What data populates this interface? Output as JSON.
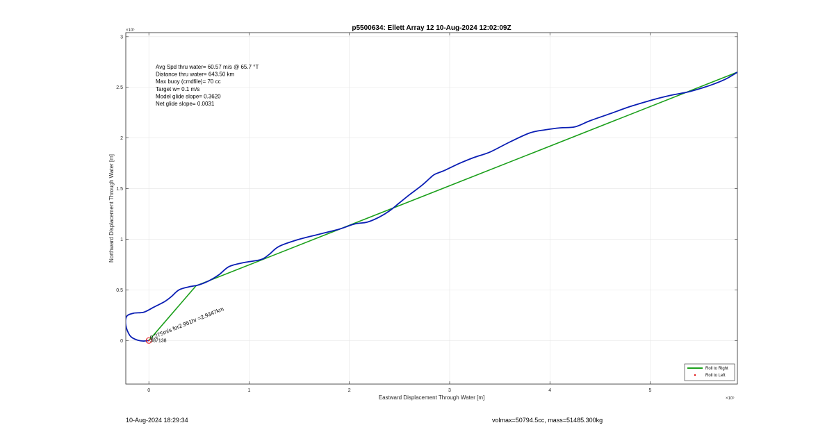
{
  "chart_data": {
    "type": "line",
    "title": "p5500634: Ellett Array 12 10-Aug-2024 12:02:09Z",
    "xlabel": "Eastward Displacement Through Water [m]",
    "ylabel": "Northward Displacement Through Water [m]",
    "x_exponent_label": "×10⁵",
    "y_exponent_label": "×10⁵",
    "xlim": [
      -0.23,
      5.87
    ],
    "ylim": [
      -0.43,
      3.04
    ],
    "x_ticks": [
      0,
      1,
      2,
      3,
      4,
      5
    ],
    "x_tick_labels": [
      "0",
      "1",
      "2",
      "3",
      "4",
      "5"
    ],
    "y_ticks": [
      0,
      0.5,
      1,
      1.5,
      2,
      2.5,
      3
    ],
    "y_tick_labels": [
      "0",
      "0.5",
      "1",
      "1.5",
      "2",
      "2.5",
      "3"
    ],
    "grid": true,
    "legend_position": "bottom-right",
    "series": [
      {
        "color": "#0a1eb4",
        "x": [
          0,
          -0.06,
          -0.13,
          -0.19,
          -0.23,
          -0.22,
          -0.15,
          -0.05,
          0.05,
          0.15,
          0.22,
          0.3,
          0.4,
          0.5,
          0.6,
          0.7,
          0.8,
          0.95,
          1.12,
          1.2,
          1.3,
          1.5,
          1.7,
          1.9,
          2.05,
          2.18,
          2.3,
          2.4,
          2.5,
          2.6,
          2.72,
          2.8,
          2.85,
          2.95,
          3.1,
          3.25,
          3.4,
          3.6,
          3.8,
          3.95,
          4.1,
          4.25,
          4.4,
          4.6,
          4.8,
          5.0,
          5.2,
          5.4,
          5.6,
          5.75,
          5.87
        ],
        "y": [
          0,
          -0.005,
          0.01,
          0.05,
          0.15,
          0.24,
          0.27,
          0.28,
          0.33,
          0.38,
          0.43,
          0.5,
          0.53,
          0.55,
          0.59,
          0.65,
          0.73,
          0.77,
          0.8,
          0.85,
          0.93,
          1.0,
          1.05,
          1.1,
          1.15,
          1.17,
          1.22,
          1.28,
          1.36,
          1.44,
          1.53,
          1.6,
          1.64,
          1.68,
          1.75,
          1.81,
          1.86,
          1.96,
          2.05,
          2.08,
          2.1,
          2.11,
          2.17,
          2.24,
          2.31,
          2.37,
          2.42,
          2.46,
          2.52,
          2.58,
          2.65
        ]
      },
      {
        "name": "Roll to Right",
        "color": "#1ca01c",
        "x": [
          0,
          0.47,
          5.87
        ],
        "y": [
          0,
          0.54,
          2.65
        ]
      },
      {
        "name": "Roll to Left",
        "color": "#e01010",
        "marker": "dot",
        "x": [],
        "y": []
      }
    ],
    "start_marker": {
      "x": 0,
      "y": 0,
      "color": "#e01010"
    },
    "annotations": {
      "stats": [
        "Avg Spd thru water= 60.57 m/s @  65.7 °T",
        "Distance thru water= 643.50 km",
        "Max buoy (cmdfile)= 70 cc",
        "Target w= 0.1 m/s",
        "Model glide slope= 0.3620",
        "Net glide slope= 0.0031"
      ],
      "rotated_label": "0.275m/s for2.951hr =2.9347km",
      "start_label": "387138"
    }
  },
  "footer": {
    "left": "10-Aug-2024 18:29:34",
    "right": "volmax=50794.5cc, mass=51485.300kg"
  }
}
